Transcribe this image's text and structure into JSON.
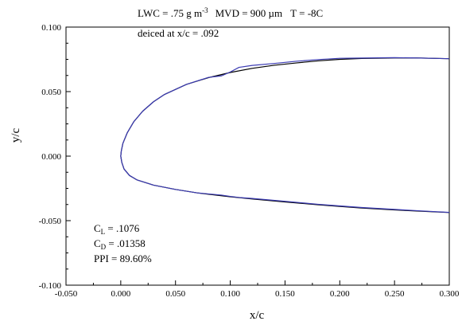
{
  "chart_data": {
    "type": "line",
    "title": "LWC = .75 g m-3   MVD = 900 µm   T = -8C",
    "title_parts": {
      "lwc": "LWC = .75 g m",
      "lwc_exp": "-3",
      "mvd": "MVD = 900 µm",
      "temp": "T = -8C"
    },
    "subtitle": "deiced at x/c = .092",
    "xlabel": "x/c",
    "ylabel": "y/c",
    "xlim": [
      -0.05,
      0.3
    ],
    "ylim": [
      -0.1,
      0.1
    ],
    "x_ticks": [
      {
        "value": -0.05,
        "label": "-0.050"
      },
      {
        "value": 0.0,
        "label": "0.000"
      },
      {
        "value": 0.05,
        "label": "0.050"
      },
      {
        "value": 0.1,
        "label": "0.100"
      },
      {
        "value": 0.15,
        "label": "0.150"
      },
      {
        "value": 0.2,
        "label": "0.200"
      },
      {
        "value": 0.25,
        "label": "0.250"
      },
      {
        "value": 0.3,
        "label": "0.300"
      }
    ],
    "y_ticks": [
      {
        "value": -0.1,
        "label": "-0.100"
      },
      {
        "value": -0.05,
        "label": "-0.050"
      },
      {
        "value": 0.0,
        "label": "0.000"
      },
      {
        "value": 0.05,
        "label": "0.050"
      },
      {
        "value": 0.1,
        "label": "0.100"
      }
    ],
    "grid": false,
    "series": [
      {
        "color": "#000000",
        "points": [
          [
            0.3,
            0.0755
          ],
          [
            0.27,
            0.0761
          ],
          [
            0.25,
            0.0761
          ],
          [
            0.22,
            0.0757
          ],
          [
            0.2,
            0.075
          ],
          [
            0.18,
            0.0738
          ],
          [
            0.16,
            0.0722
          ],
          [
            0.14,
            0.0704
          ],
          [
            0.12,
            0.068
          ],
          [
            0.1,
            0.0648
          ],
          [
            0.08,
            0.0608
          ],
          [
            0.06,
            0.0556
          ],
          [
            0.04,
            0.0478
          ],
          [
            0.03,
            0.0422
          ],
          [
            0.02,
            0.0348
          ],
          [
            0.012,
            0.0268
          ],
          [
            0.006,
            0.0182
          ],
          [
            0.002,
            0.01
          ],
          [
            0.0005,
            0.004
          ],
          [
            0.0,
            0.0
          ],
          [
            0.001,
            -0.005
          ],
          [
            0.003,
            -0.01
          ],
          [
            0.008,
            -0.015
          ],
          [
            0.015,
            -0.0185
          ],
          [
            0.03,
            -0.0225
          ],
          [
            0.05,
            -0.0258
          ],
          [
            0.07,
            -0.0285
          ],
          [
            0.1,
            -0.0315
          ],
          [
            0.12,
            -0.0332
          ],
          [
            0.15,
            -0.0355
          ],
          [
            0.18,
            -0.0377
          ],
          [
            0.2,
            -0.039
          ],
          [
            0.22,
            -0.0402
          ],
          [
            0.25,
            -0.0417
          ],
          [
            0.28,
            -0.0429
          ],
          [
            0.3,
            -0.0437
          ]
        ]
      },
      {
        "color": "#3b3bb3",
        "points": [
          [
            0.3,
            0.0755
          ],
          [
            0.27,
            0.0761
          ],
          [
            0.25,
            0.0763
          ],
          [
            0.22,
            0.076
          ],
          [
            0.2,
            0.0758
          ],
          [
            0.18,
            0.0748
          ],
          [
            0.16,
            0.0735
          ],
          [
            0.14,
            0.0718
          ],
          [
            0.12,
            0.0703
          ],
          [
            0.108,
            0.0688
          ],
          [
            0.1,
            0.0652
          ],
          [
            0.092,
            0.0622
          ],
          [
            0.08,
            0.061
          ],
          [
            0.06,
            0.0556
          ],
          [
            0.04,
            0.0478
          ],
          [
            0.03,
            0.0422
          ],
          [
            0.02,
            0.0348
          ],
          [
            0.012,
            0.0268
          ],
          [
            0.006,
            0.0182
          ],
          [
            0.002,
            0.01
          ],
          [
            0.0005,
            0.004
          ],
          [
            0.0,
            0.0
          ],
          [
            0.001,
            -0.005
          ],
          [
            0.003,
            -0.01
          ],
          [
            0.008,
            -0.015
          ],
          [
            0.015,
            -0.0185
          ],
          [
            0.03,
            -0.0225
          ],
          [
            0.05,
            -0.0258
          ],
          [
            0.07,
            -0.0285
          ],
          [
            0.092,
            -0.0302
          ],
          [
            0.1,
            -0.0312
          ],
          [
            0.11,
            -0.0322
          ],
          [
            0.12,
            -0.0328
          ],
          [
            0.15,
            -0.035
          ],
          [
            0.18,
            -0.0373
          ],
          [
            0.2,
            -0.0386
          ],
          [
            0.22,
            -0.0398
          ],
          [
            0.25,
            -0.0413
          ],
          [
            0.28,
            -0.0427
          ],
          [
            0.3,
            -0.0436
          ]
        ]
      }
    ],
    "annotations": {
      "cl_sym": "C",
      "cl_sub": "L",
      "cl_val": " = .1076",
      "cd_sym": "C",
      "cd_sub": "D",
      "cd_val": " = .01358",
      "ppi": "PPI = 89.60%"
    }
  }
}
